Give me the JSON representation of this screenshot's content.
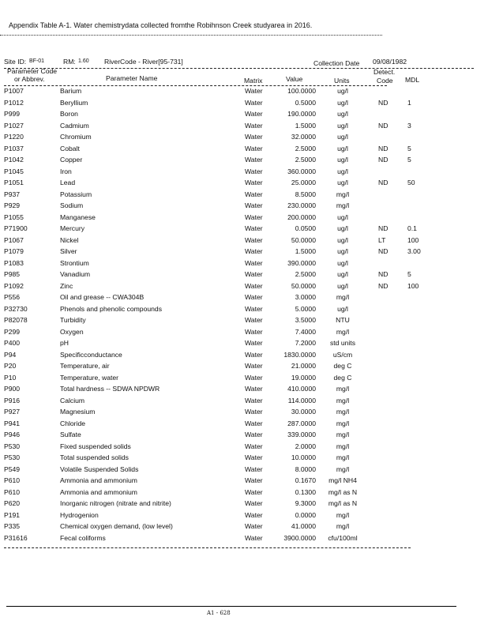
{
  "title": "Appendix Table A-1. Water chemistrydata collected fromthe Robihnson Creek studyarea in 2016.",
  "site": {
    "site_id_label": "Site ID:",
    "site_id": "BF-01",
    "rm_label": "RM:",
    "rm": "1.60",
    "river_code": "RiverCode - River[95-731]",
    "collection_date_label": "Collection Date",
    "collection_date": "09/08/1982"
  },
  "columns": {
    "code_line1": "Parameter Code",
    "code_line2": "or Abbrev.",
    "name": "Parameter Name",
    "matrix": "Matrix",
    "value": "Value",
    "units": "Units",
    "detect_line1": "Detect.",
    "detect_line2": "Code",
    "mdl": "MDL"
  },
  "rows": [
    {
      "code": "P1007",
      "name": "Barium",
      "matrix": "Water",
      "value": "100.0000",
      "units": "ug/l",
      "detect": "",
      "mdl": ""
    },
    {
      "code": "P1012",
      "name": "Beryllium",
      "matrix": "Water",
      "value": "0.5000",
      "units": "ug/l",
      "detect": "ND",
      "mdl": "1"
    },
    {
      "code": "P999",
      "name": "Boron",
      "matrix": "Water",
      "value": "190.0000",
      "units": "ug/l",
      "detect": "",
      "mdl": ""
    },
    {
      "code": "P1027",
      "name": "Cadmium",
      "matrix": "Water",
      "value": "1.5000",
      "units": "ug/l",
      "detect": "ND",
      "mdl": "3"
    },
    {
      "code": "P1220",
      "name": "Chromium",
      "matrix": "Water",
      "value": "32.0000",
      "units": "ug/l",
      "detect": "",
      "mdl": ""
    },
    {
      "code": "P1037",
      "name": "Cobalt",
      "matrix": "Water",
      "value": "2.5000",
      "units": "ug/l",
      "detect": "ND",
      "mdl": "5"
    },
    {
      "code": "P1042",
      "name": "Copper",
      "matrix": "Water",
      "value": "2.5000",
      "units": "ug/l",
      "detect": "ND",
      "mdl": "5"
    },
    {
      "code": "P1045",
      "name": "Iron",
      "matrix": "Water",
      "value": "360.0000",
      "units": "ug/l",
      "detect": "",
      "mdl": ""
    },
    {
      "code": "P1051",
      "name": "Lead",
      "matrix": "Water",
      "value": "25.0000",
      "units": "ug/l",
      "detect": "ND",
      "mdl": "50"
    },
    {
      "code": "P937",
      "name": "Potassium",
      "matrix": "Water",
      "value": "8.5000",
      "units": "mg/l",
      "detect": "",
      "mdl": ""
    },
    {
      "code": "P929",
      "name": "Sodium",
      "matrix": "Water",
      "value": "230.0000",
      "units": "mg/l",
      "detect": "",
      "mdl": ""
    },
    {
      "code": "P1055",
      "name": "Manganese",
      "matrix": "Water",
      "value": "200.0000",
      "units": "ug/l",
      "detect": "",
      "mdl": ""
    },
    {
      "code": "P71900",
      "name": "Mercury",
      "matrix": "Water",
      "value": "0.0500",
      "units": "ug/l",
      "detect": "ND",
      "mdl": "0.1"
    },
    {
      "code": "P1067",
      "name": "Nickel",
      "matrix": "Water",
      "value": "50.0000",
      "units": "ug/l",
      "detect": "LT",
      "mdl": "100"
    },
    {
      "code": "P1079",
      "name": "Silver",
      "matrix": "Water",
      "value": "1.5000",
      "units": "ug/l",
      "detect": "ND",
      "mdl": "3.00"
    },
    {
      "code": "P1083",
      "name": "Strontium",
      "matrix": "Water",
      "value": "390.0000",
      "units": "ug/l",
      "detect": "",
      "mdl": ""
    },
    {
      "code": "P985",
      "name": "Vanadium",
      "matrix": "Water",
      "value": "2.5000",
      "units": "ug/l",
      "detect": "ND",
      "mdl": "5"
    },
    {
      "code": "P1092",
      "name": "Zinc",
      "matrix": "Water",
      "value": "50.0000",
      "units": "ug/l",
      "detect": "ND",
      "mdl": "100"
    },
    {
      "code": "P556",
      "name": "Oil and grease -- CWA304B",
      "matrix": "Water",
      "value": "3.0000",
      "units": "mg/l",
      "detect": "",
      "mdl": ""
    },
    {
      "code": "P32730",
      "name": "Phenols and phenolic compounds",
      "matrix": "Water",
      "value": "5.0000",
      "units": "ug/l",
      "detect": "",
      "mdl": ""
    },
    {
      "code": "P82078",
      "name": "Turbidity",
      "matrix": "Water",
      "value": "3.5000",
      "units": "NTU",
      "detect": "",
      "mdl": ""
    },
    {
      "code": "P299",
      "name": "Oxygen",
      "matrix": "Water",
      "value": "7.4000",
      "units": "mg/l",
      "detect": "",
      "mdl": ""
    },
    {
      "code": "P400",
      "name": "pH",
      "matrix": "Water",
      "value": "7.2000",
      "units": "std units",
      "detect": "",
      "mdl": ""
    },
    {
      "code": "P94",
      "name": "Specificconductance",
      "matrix": "Water",
      "value": "1830.0000",
      "units": "uS/cm",
      "detect": "",
      "mdl": ""
    },
    {
      "code": "P20",
      "name": "Temperature, air",
      "matrix": "Water",
      "value": "21.0000",
      "units": "deg C",
      "detect": "",
      "mdl": ""
    },
    {
      "code": "P10",
      "name": "Temperature, water",
      "matrix": "Water",
      "value": "19.0000",
      "units": "deg C",
      "detect": "",
      "mdl": ""
    },
    {
      "code": "P900",
      "name": "Total hardness -- SDWA NPDWR",
      "matrix": "Water",
      "value": "410.0000",
      "units": "mg/l",
      "detect": "",
      "mdl": ""
    },
    {
      "code": "P916",
      "name": "Calcium",
      "matrix": "Water",
      "value": "114.0000",
      "units": "mg/l",
      "detect": "",
      "mdl": ""
    },
    {
      "code": "P927",
      "name": "Magnesium",
      "matrix": "Water",
      "value": "30.0000",
      "units": "mg/l",
      "detect": "",
      "mdl": ""
    },
    {
      "code": "P941",
      "name": "Chloride",
      "matrix": "Water",
      "value": "287.0000",
      "units": "mg/l",
      "detect": "",
      "mdl": ""
    },
    {
      "code": "P946",
      "name": "Sulfate",
      "matrix": "Water",
      "value": "339.0000",
      "units": "mg/l",
      "detect": "",
      "mdl": ""
    },
    {
      "code": "P530",
      "name": "Fixed suspended solids",
      "matrix": "Water",
      "value": "2.0000",
      "units": "mg/l",
      "detect": "",
      "mdl": ""
    },
    {
      "code": "P530",
      "name": "Total suspended solids",
      "matrix": "Water",
      "value": "10.0000",
      "units": "mg/l",
      "detect": "",
      "mdl": ""
    },
    {
      "code": "P549",
      "name": "Volatile Suspended Solids",
      "matrix": "Water",
      "value": "8.0000",
      "units": "mg/l",
      "detect": "",
      "mdl": ""
    },
    {
      "code": "P610",
      "name": "Ammonia and ammonium",
      "matrix": "Water",
      "value": "0.1670",
      "units": "mg/l NH4",
      "detect": "",
      "mdl": ""
    },
    {
      "code": "P610",
      "name": "Ammonia and ammonium",
      "matrix": "Water",
      "value": "0.1300",
      "units": "mg/l as N",
      "detect": "",
      "mdl": ""
    },
    {
      "code": "P620",
      "name": "Inorganic nitrogen (nitrate and nitrite)",
      "matrix": "Water",
      "value": "9.3000",
      "units": "mg/l as N",
      "detect": "",
      "mdl": ""
    },
    {
      "code": "P191",
      "name": "Hydrogenion",
      "matrix": "Water",
      "value": "0.0000",
      "units": "mg/l",
      "detect": "",
      "mdl": ""
    },
    {
      "code": "P335",
      "name": "Chemical oxygen demand, (low level)",
      "matrix": "Water",
      "value": "41.0000",
      "units": "mg/l",
      "detect": "",
      "mdl": ""
    },
    {
      "code": "P31616",
      "name": "Fecal coliforms",
      "matrix": "Water",
      "value": "3900.0000",
      "units": "cfu/100ml",
      "detect": "",
      "mdl": ""
    }
  ],
  "footer": "A1 - 628"
}
